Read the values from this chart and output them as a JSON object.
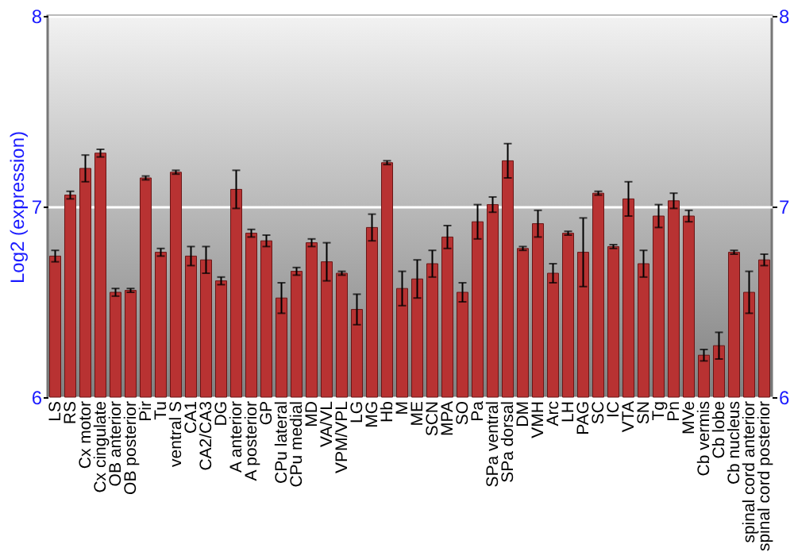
{
  "chart_data": {
    "type": "bar",
    "ylabel": "Log2 (expression)",
    "categories": [
      "LS",
      "RS",
      "Cx motor",
      "Cx cingulate",
      "OB anterior",
      "OB posterior",
      "Pir",
      "Tu",
      "ventral S",
      "CA1",
      "CA2/CA3",
      "DG",
      "A anterior",
      "A posterior",
      "GP",
      "CPu lateral",
      "CPu medial",
      "MD",
      "VA/VL",
      "VPM/VPL",
      "LG",
      "MG",
      "Hb",
      "M",
      "ME",
      "SCN",
      "MPA",
      "SO",
      "Pa",
      "SPa ventral",
      "SPa dorsal",
      "DM",
      "VMH",
      "Arc",
      "LH",
      "PAG",
      "SC",
      "IC",
      "VTA",
      "SN",
      "Tg",
      "Pn",
      "MVe",
      "Cb vermis",
      "Cb lobe",
      "Cb nucleus",
      "spinal cord anterior",
      "spinal cord posterior"
    ],
    "values": [
      6.74,
      7.06,
      7.2,
      7.28,
      6.55,
      6.56,
      7.15,
      6.76,
      7.18,
      6.74,
      6.72,
      6.61,
      7.09,
      6.86,
      6.82,
      6.52,
      6.66,
      6.81,
      6.71,
      6.65,
      6.46,
      6.89,
      7.23,
      6.57,
      6.62,
      6.7,
      6.84,
      6.55,
      6.92,
      7.01,
      7.24,
      6.78,
      6.91,
      6.65,
      6.86,
      6.76,
      7.07,
      6.79,
      7.04,
      6.7,
      6.95,
      7.03,
      6.95,
      6.22,
      6.27,
      6.76,
      6.55,
      6.72
    ],
    "errors": [
      0.03,
      0.02,
      0.07,
      0.02,
      0.02,
      0.01,
      0.01,
      0.02,
      0.01,
      0.05,
      0.07,
      0.02,
      0.1,
      0.02,
      0.03,
      0.08,
      0.02,
      0.02,
      0.1,
      0.01,
      0.08,
      0.07,
      0.01,
      0.09,
      0.1,
      0.07,
      0.06,
      0.05,
      0.09,
      0.04,
      0.09,
      0.01,
      0.07,
      0.05,
      0.01,
      0.18,
      0.01,
      0.01,
      0.09,
      0.07,
      0.06,
      0.04,
      0.03,
      0.03,
      0.07,
      0.01,
      0.11,
      0.03
    ],
    "color": "#b83232",
    "ylim": [
      6,
      8
    ],
    "yticks": [
      6,
      7,
      8
    ],
    "y2lim": [
      6,
      8
    ],
    "y2ticks": [
      6,
      7,
      8
    ],
    "grid": true
  }
}
